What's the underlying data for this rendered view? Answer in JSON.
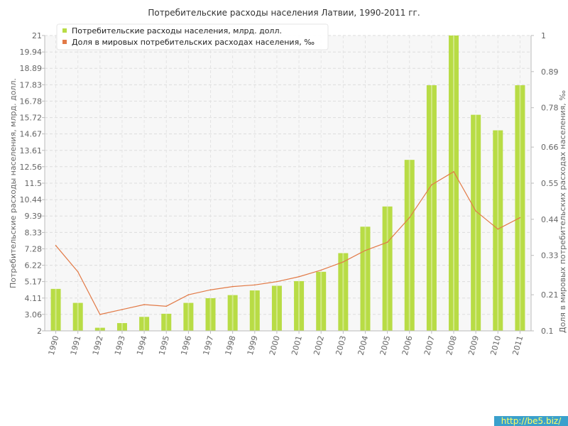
{
  "chart_data": {
    "type": "bar+line",
    "title": "Потребительские расходы населения Латвии, 1990-2011 гг.",
    "categories": [
      "1990",
      "1991",
      "1992",
      "1993",
      "1994",
      "1995",
      "1996",
      "1997",
      "1998",
      "1999",
      "2000",
      "2001",
      "2002",
      "2003",
      "2004",
      "2005",
      "2006",
      "2007",
      "2008",
      "2009",
      "2010",
      "2011"
    ],
    "series": [
      {
        "name": "Потребительские расходы населения, млрд. долл.",
        "type": "bar",
        "axis": "left",
        "color": "#b8dc45",
        "values": [
          4.7,
          3.8,
          2.2,
          2.5,
          2.9,
          3.1,
          3.8,
          4.1,
          4.3,
          4.6,
          4.9,
          5.2,
          5.8,
          7.0,
          8.7,
          10.0,
          13.0,
          17.8,
          21.0,
          15.9,
          14.9,
          17.8
        ]
      },
      {
        "name": "Доля в мировых потребительских расходах населения, ‰",
        "type": "line",
        "axis": "right",
        "color": "#e27a47",
        "values": [
          0.36,
          0.28,
          0.15,
          0.165,
          0.18,
          0.175,
          0.21,
          0.225,
          0.235,
          0.24,
          0.25,
          0.265,
          0.285,
          0.31,
          0.345,
          0.37,
          0.445,
          0.545,
          0.585,
          0.465,
          0.41,
          0.445
        ]
      }
    ],
    "ylabel": "Потребительские расходы населения, млрд. долл.",
    "y2label": "Доля в мировых потребительских расходах населения, ‰",
    "ylim": [
      2,
      21
    ],
    "y2lim": [
      0.1,
      1
    ],
    "yticks": [
      "2",
      "3.06",
      "4.11",
      "5.17",
      "6.22",
      "7.28",
      "8.33",
      "9.39",
      "10.44",
      "11.5",
      "12.56",
      "13.61",
      "14.67",
      "15.72",
      "16.78",
      "17.83",
      "18.89",
      "19.94",
      "21"
    ],
    "y2ticks": [
      "0.1",
      "0.21",
      "0.33",
      "0.44",
      "0.55",
      "0.66",
      "0.78",
      "0.89",
      "1"
    ],
    "grid": true,
    "legend_position": "top-left"
  },
  "watermark": "http://be5.biz/"
}
